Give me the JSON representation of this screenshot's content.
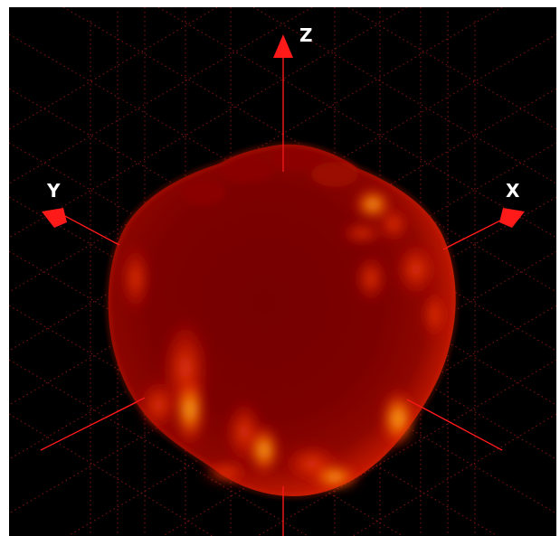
{
  "axes": {
    "x": {
      "label": "X"
    },
    "y": {
      "label": "Y"
    },
    "z": {
      "label": "Z"
    }
  },
  "colors": {
    "background": "#000000",
    "axis": "#ff1a1a",
    "grid": "#a01818",
    "surface_dark": "#7a0000",
    "surface_mid": "#d81d00",
    "surface_hot": "#ffb000"
  }
}
